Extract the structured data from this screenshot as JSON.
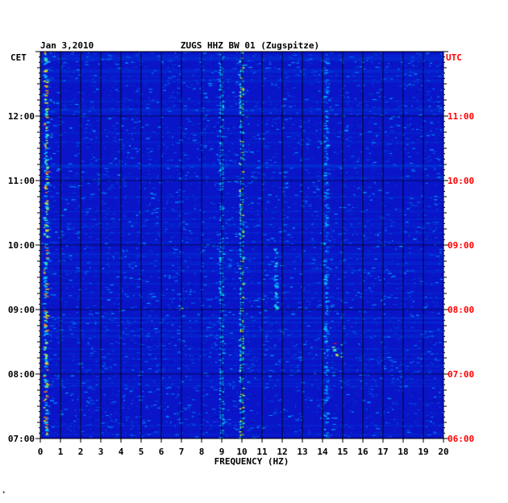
{
  "chart_data": {
    "type": "heatmap",
    "title": "ZUGS HHZ BW 01 (Zugspitze)",
    "date": "Jan 3,2010",
    "xlabel": "FREQUENCY (HZ)",
    "left_axis_label": "CET",
    "right_axis_label": "UTC",
    "xlim": [
      0,
      20
    ],
    "x_ticks": [
      "0",
      "1",
      "2",
      "3",
      "4",
      "5",
      "6",
      "7",
      "8",
      "9",
      "10",
      "11",
      "12",
      "13",
      "14",
      "15",
      "16",
      "17",
      "18",
      "19",
      "20"
    ],
    "y_ticks_cet": [
      "07:00",
      "08:00",
      "09:00",
      "10:00",
      "11:00",
      "12:00"
    ],
    "y_ticks_utc": [
      "06:00",
      "07:00",
      "08:00",
      "09:00",
      "10:00",
      "11:00"
    ],
    "time_range_cet": [
      "07:00",
      "13:00"
    ],
    "grid": true,
    "colors": {
      "background": "#0a14c8",
      "low": "#0014b4",
      "mid": "#00d2ff",
      "high": "#ffff00",
      "peak": "#ff0000",
      "utc_label": "#ff0000",
      "frame": "#000000"
    },
    "features": [
      {
        "freq_hz": 0.3,
        "time_start": "07:00",
        "time_end": "13:00",
        "level": 0.85
      },
      {
        "freq_hz": 9.0,
        "time_start": "07:00",
        "time_end": "13:00",
        "level": 0.55
      },
      {
        "freq_hz": 10.0,
        "time_start": "07:00",
        "time_end": "13:00",
        "level": 0.75
      },
      {
        "freq_hz": 11.7,
        "time_start": "09:00",
        "time_end": "10:00",
        "level": 0.6
      },
      {
        "freq_hz": 14.2,
        "time_start": "07:00",
        "time_end": "13:00",
        "level": 0.5
      },
      {
        "freq_hz": 15.0,
        "time_start": "08:15",
        "time_end": "08:30",
        "level": 1.0
      },
      {
        "freq_hz": 7.0,
        "time_start": "08:58",
        "time_end": "09:05",
        "level": 0.7
      }
    ]
  }
}
